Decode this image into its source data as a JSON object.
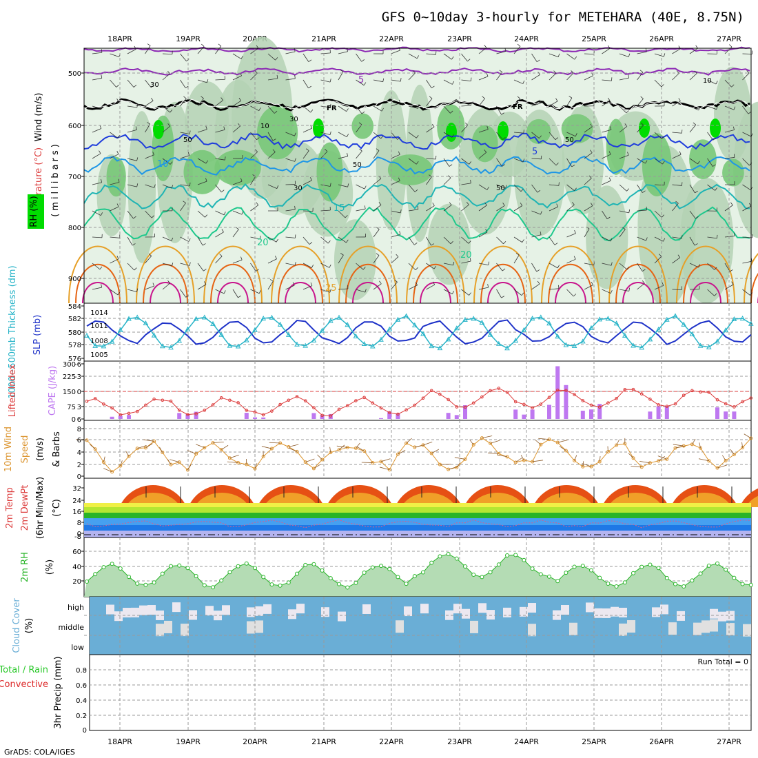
{
  "title": "GFS 0~10day 3-hourly for METEHARA (40E, 8.75N)",
  "footer": "GrADS: COLA/IGES",
  "run_total": "Run Total = 0",
  "dates": [
    "18APR",
    "19APR",
    "20APR",
    "21APR",
    "22APR",
    "23APR",
    "24APR",
    "25APR",
    "26APR",
    "27APR"
  ],
  "colors": {
    "rh_light": "#e6f2e6",
    "rh_mid": "#b4d2b4",
    "rh_dark": "#78c878",
    "rh_green": "#00dc00",
    "temp_purple": "#8c28b4",
    "temp_blue": "#1e3cdc",
    "temp_lightblue": "#1e96e6",
    "temp_teal": "#1eb4b4",
    "temp_cyan_green": "#1ec88c",
    "temp_orange": "#e6a028",
    "temp_darkorange": "#e66414",
    "temp_magenta": "#c8148c",
    "slp": "#1e32c8",
    "thickness": "#28b4c8",
    "li": "#dc3c3c",
    "cape": "#be78f0",
    "wind": "#dc9632",
    "rh2m": "#28b428",
    "cloud": "#6aaed6",
    "precip_total": "#28c828",
    "precip_conv": "#dc2828"
  },
  "panels": {
    "upper": {
      "left_label_wind": "Wind (m/s)",
      "left_label_temp": "Temperature (°C)",
      "left_label_rh": "RH (%)",
      "ylabel": "(millibars)",
      "yticks": [
        "500",
        "600",
        "700",
        "800",
        "900"
      ],
      "contour_labels": [
        "5",
        "FR",
        "FR",
        "5",
        "10",
        "15",
        "20",
        "20",
        "25",
        "10",
        "50",
        "30",
        "50",
        "30",
        "50",
        "50",
        "30",
        "10"
      ]
    },
    "slp": {
      "label_thick": "1000~500mb Thickness (dm)",
      "label_slp": "SLP (mb)",
      "yticks_left": [
        "584",
        "582",
        "580",
        "578",
        "576"
      ],
      "yticks_right": [
        "1014",
        "1011",
        "1008",
        "1005"
      ]
    },
    "li": {
      "label_li": "Lifted Index",
      "label_cape": "CAPE (J/kg)",
      "yticks_left": [
        "-6",
        "-3",
        "0",
        "3",
        "6"
      ],
      "yticks_right": [
        "300",
        "225",
        "150",
        "75",
        "0"
      ]
    },
    "wind": {
      "label_a": "10m Wind",
      "label_b": "Speed",
      "label_c": "(m/s)",
      "label_d": "& Barbs",
      "yticks": [
        "8",
        "6",
        "4",
        "2",
        "0"
      ]
    },
    "temp": {
      "label_a": "2m Temp",
      "label_b": "2m DewPt",
      "label_c": "(6hr Min/Max)",
      "label_d": "(°C)",
      "yticks": [
        "32",
        "24",
        "16",
        "8",
        "0"
      ],
      "yticks_extra": "-8"
    },
    "rh": {
      "label_a": "2m RH",
      "label_b": "(%)",
      "yticks": [
        "60",
        "40",
        "20"
      ]
    },
    "cloud": {
      "label_a": "Cloud Cover",
      "label_b": "(%)",
      "levels": [
        "high",
        "middle",
        "low"
      ]
    },
    "precip": {
      "label_total": "Total / Rain",
      "label_conv": "Convective",
      "label_y": "3hr Precip (mm)",
      "yticks": [
        "0.8",
        "0.6",
        "0.4",
        "0.2",
        "0"
      ]
    }
  },
  "chart_data": [
    {
      "type": "line",
      "name": "SLP",
      "unit": "mb",
      "x": [
        "18APR",
        "19APR",
        "20APR",
        "21APR",
        "22APR",
        "23APR",
        "24APR",
        "25APR",
        "26APR",
        "27APR"
      ],
      "range": [
        1004,
        1016
      ],
      "approx_daily_range": [
        1006,
        1015
      ]
    },
    {
      "type": "line",
      "name": "1000-500mb thickness",
      "unit": "dm",
      "range": [
        575,
        584
      ],
      "approx_daily_range": [
        576,
        583
      ]
    },
    {
      "type": "bar",
      "name": "CAPE",
      "unit": "J/kg",
      "ylim": [
        0,
        300
      ],
      "peak": 280,
      "peak_date": "24APR"
    },
    {
      "type": "line",
      "name": "10m wind speed",
      "unit": "m/s",
      "ylim": [
        0,
        9
      ],
      "approx_range": [
        0,
        8
      ]
    },
    {
      "type": "area",
      "name": "2m Temp",
      "unit": "°C",
      "ylim": [
        -8,
        38
      ],
      "approx_daily_range": [
        21,
        33
      ]
    },
    {
      "type": "area",
      "name": "2m RH",
      "unit": "%",
      "ylim": [
        0,
        80
      ],
      "approx_range": [
        10,
        75
      ]
    },
    {
      "type": "bar",
      "name": "3hr Precip",
      "unit": "mm",
      "ylim": [
        0,
        1
      ],
      "values": []
    }
  ]
}
